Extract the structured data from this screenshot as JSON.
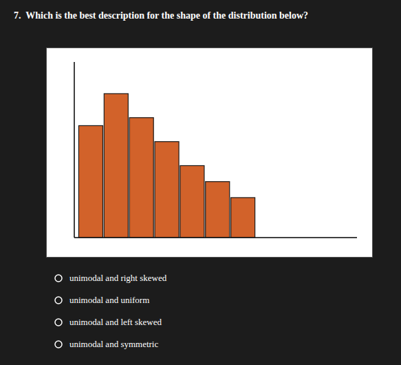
{
  "chart_data": {
    "type": "bar",
    "title": "7.  Which is the best description for the shape of the distribution below?",
    "categories": [
      null,
      null,
      null,
      null,
      null,
      null,
      null
    ],
    "values": [
      7,
      9,
      7.5,
      6,
      4.5,
      3.5,
      2.5
    ],
    "color": "#D2622A",
    "ylim": [
      0,
      10.98
    ],
    "tick_labels": false,
    "grid": false,
    "annotations": [
      "unimodal and right skewed",
      "unimodal and uniform",
      "unimodal and left skewed",
      "unimodal and symmetric"
    ]
  }
}
